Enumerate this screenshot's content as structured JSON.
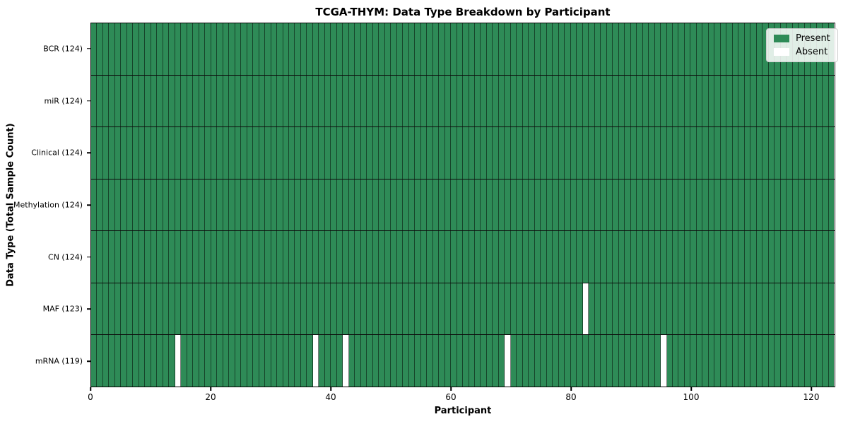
{
  "chart_data": {
    "type": "heatmap",
    "title": "TCGA-THYM: Data Type Breakdown by Participant",
    "xlabel": "Participant",
    "ylabel": "Data Type (Total Sample Count)",
    "n_participants": 124,
    "xlim": [
      0,
      124
    ],
    "xticks": [
      0,
      20,
      40,
      60,
      80,
      100,
      120
    ],
    "grid": false,
    "rows": [
      {
        "data_type": "BCR",
        "label": "BCR (124)",
        "total_samples": 124,
        "absent_participants": []
      },
      {
        "data_type": "miR",
        "label": "miR (124)",
        "total_samples": 124,
        "absent_participants": []
      },
      {
        "data_type": "Clinical",
        "label": "Clinical (124)",
        "total_samples": 124,
        "absent_participants": []
      },
      {
        "data_type": "Methylation",
        "label": "Methylation (124)",
        "total_samples": 124,
        "absent_participants": []
      },
      {
        "data_type": "CN",
        "label": "CN (124)",
        "total_samples": 124,
        "absent_participants": []
      },
      {
        "data_type": "MAF",
        "label": "MAF (123)",
        "total_samples": 123,
        "absent_participants": [
          82
        ]
      },
      {
        "data_type": "mRNA",
        "label": "mRNA (119)",
        "total_samples": 119,
        "absent_participants": [
          14,
          37,
          42,
          69,
          95
        ]
      }
    ],
    "legend": {
      "position": "upper right",
      "entries": [
        {
          "label": "Present",
          "color": "#2e8b57"
        },
        {
          "label": "Absent",
          "color": "#ffffff"
        }
      ]
    },
    "colors": {
      "present": "#2e8b57",
      "absent": "#ffffff",
      "cell_border": "rgba(0,0,0,0.5)",
      "row_separator": "#0d0d0d",
      "spine": "#000000"
    }
  }
}
